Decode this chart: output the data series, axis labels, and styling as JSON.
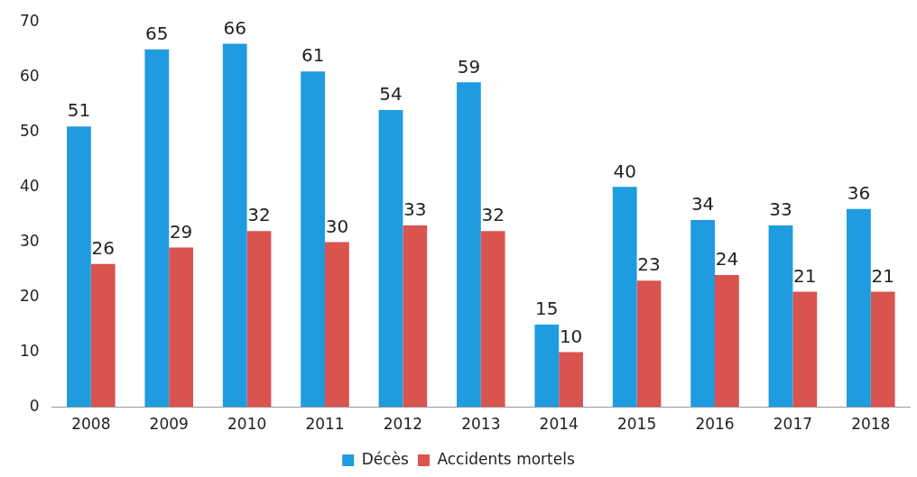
{
  "chart_data": {
    "type": "bar",
    "categories": [
      "2008",
      "2009",
      "2010",
      "2011",
      "2012",
      "2013",
      "2014",
      "2015",
      "2016",
      "2017",
      "2018"
    ],
    "series": [
      {
        "name": "Décès",
        "color": "#1f9be0",
        "values": [
          51,
          65,
          66,
          61,
          54,
          59,
          15,
          40,
          34,
          33,
          36
        ]
      },
      {
        "name": "Accidents mortels",
        "color": "#d9534f",
        "values": [
          26,
          29,
          32,
          30,
          33,
          32,
          10,
          23,
          24,
          21,
          21
        ]
      }
    ],
    "ylim": [
      0,
      70
    ],
    "yticks": [
      0,
      10,
      20,
      30,
      40,
      50,
      60,
      70
    ],
    "grid": false,
    "legend": "bottom",
    "data_labels": true
  }
}
